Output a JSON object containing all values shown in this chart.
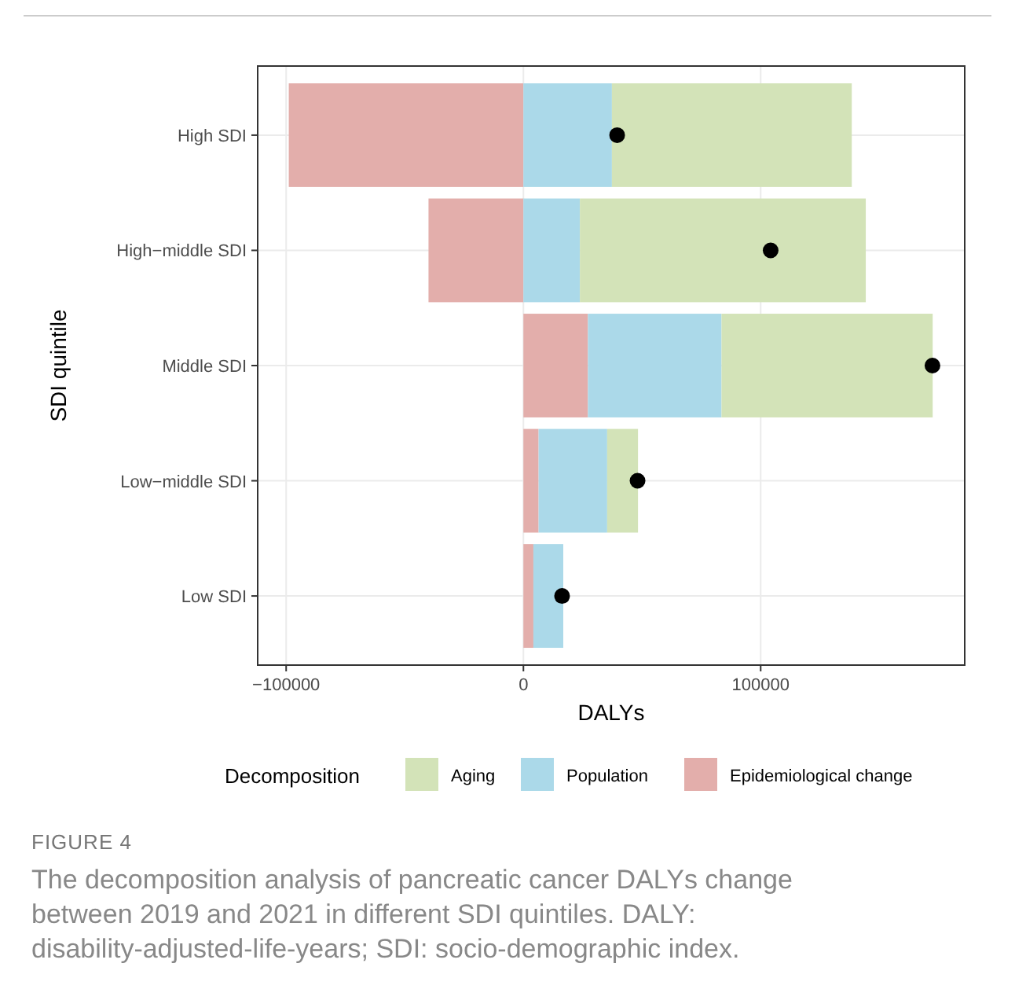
{
  "chart_data": {
    "type": "bar",
    "orientation": "horizontal",
    "stacked": true,
    "categories": [
      "High SDI",
      "High−middle SDI",
      "Middle SDI",
      "Low−middle SDI",
      "Low SDI"
    ],
    "series": [
      {
        "name": "Epidemiological change",
        "color": "#e3aeab",
        "values": [
          -98900,
          -40000,
          27200,
          6400,
          4200
        ]
      },
      {
        "name": "Population",
        "color": "#abd9e9",
        "values": [
          37300,
          23800,
          56300,
          28900,
          12600
        ]
      },
      {
        "name": "Aging",
        "color": "#d3e3b8",
        "values": [
          101100,
          120500,
          89000,
          13000,
          null
        ]
      },
      {
        "type": "scatter",
        "color": "#000000",
        "marker": "circle",
        "x": [
          "High SDI",
          "High−middle SDI",
          "Middle SDI",
          "Low−middle SDI",
          "Low SDI"
        ],
        "values": [
          39500,
          104200,
          172400,
          48100,
          16300
        ]
      }
    ],
    "xlim": [
      -112000,
      186000
    ],
    "xticks": [
      {
        "value": -100000,
        "label": "−100000"
      },
      0,
      100000
    ],
    "xlabel": "DALYs",
    "ylabel": "SDI quintile",
    "legend_title": "Decomposition",
    "legend": "bottom",
    "grid": true,
    "annotations": [
      "FIGURE 4",
      "The decomposition analysis of pancreatic cancer DALYs change between 2019 and 2021 in different SDI quintiles. DALY: disability-adjusted-life-years; SDI: socio-demographic index."
    ]
  }
}
